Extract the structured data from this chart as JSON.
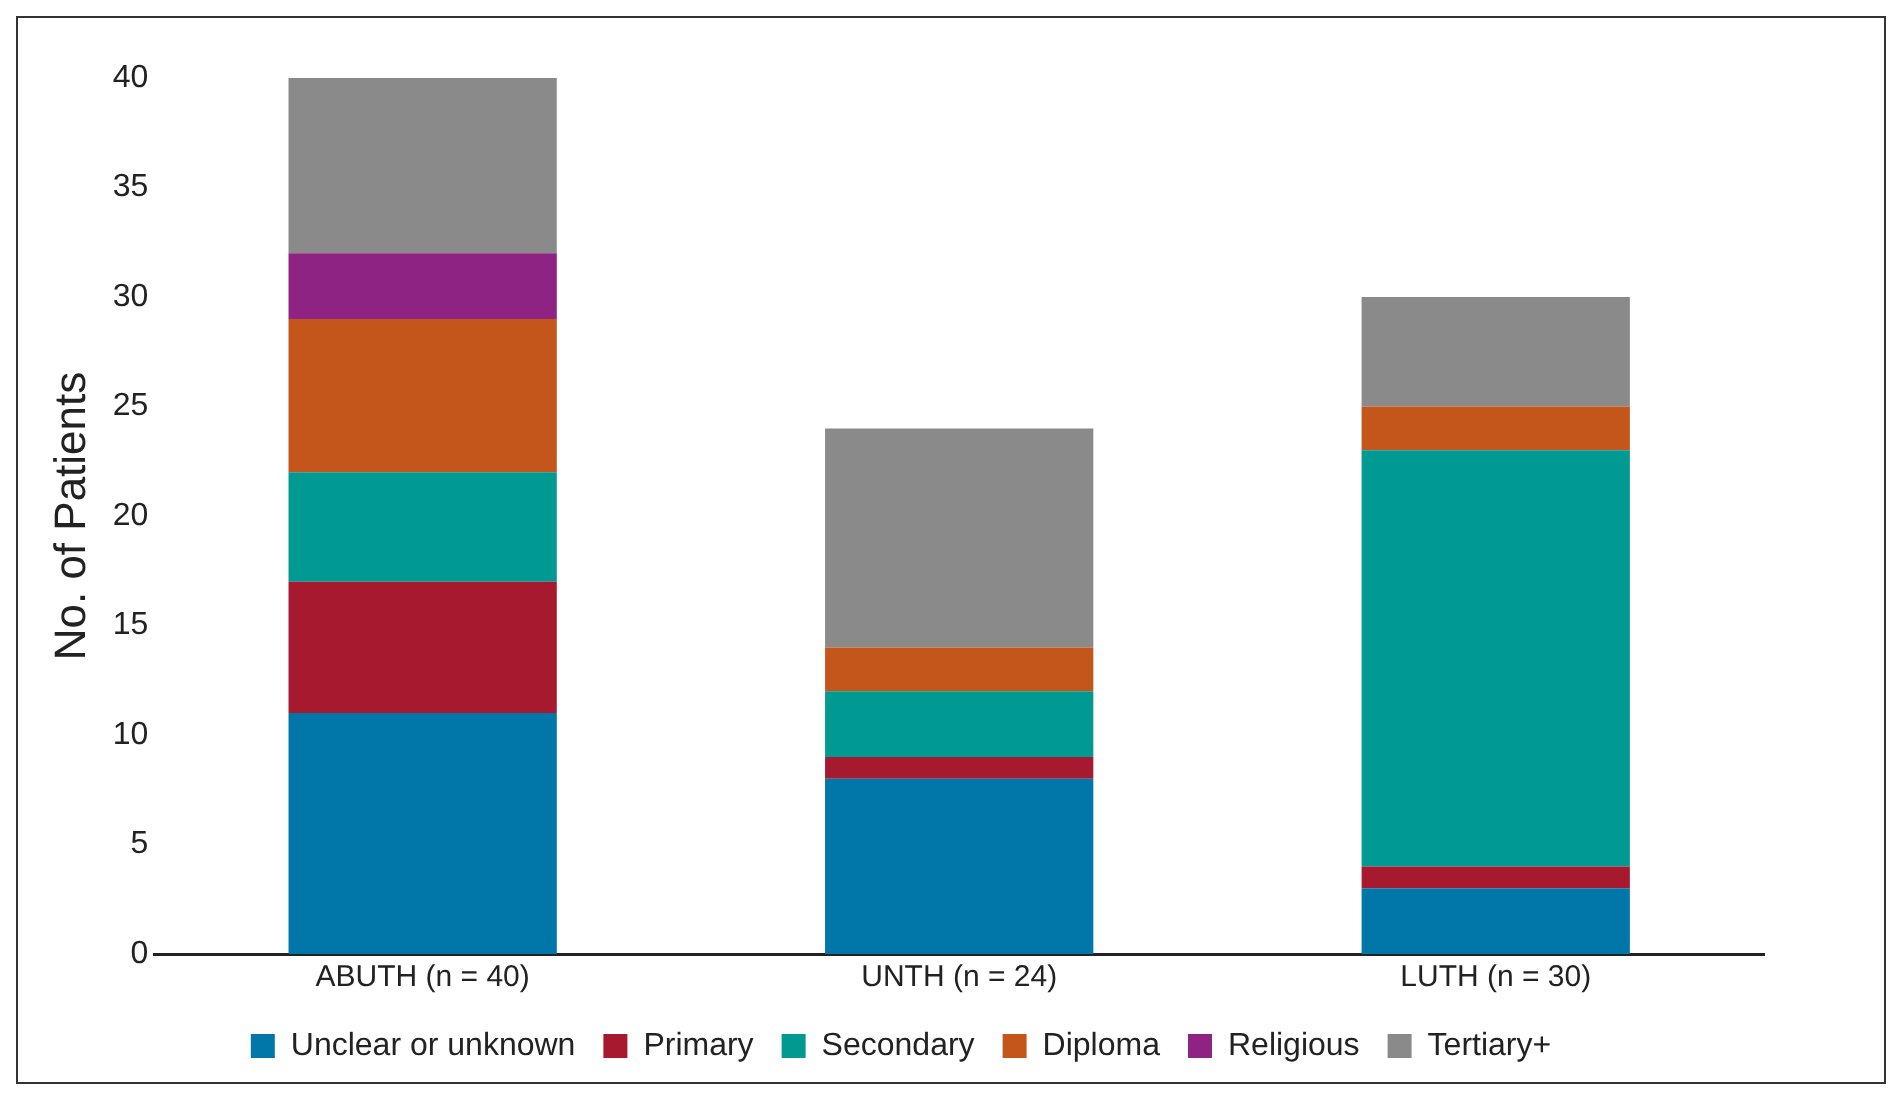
{
  "chart_data": {
    "type": "bar",
    "stacked": true,
    "ylabel": "No. of Patients",
    "categories": [
      "ABUTH (n = 40)",
      "UNTH (n = 24)",
      "LUTH (n = 30)"
    ],
    "series": [
      {
        "name": "Unclear or unknown",
        "color": "#0077a8",
        "values": [
          11,
          8,
          3
        ]
      },
      {
        "name": "Primary",
        "color": "#a6192e",
        "values": [
          6,
          1,
          1
        ]
      },
      {
        "name": "Secondary",
        "color": "#009a93",
        "values": [
          5,
          3,
          19
        ]
      },
      {
        "name": "Diploma",
        "color": "#c4561c",
        "values": [
          7,
          2,
          2
        ]
      },
      {
        "name": "Religious",
        "color": "#8e2383",
        "values": [
          3,
          0,
          0
        ]
      },
      {
        "name": "Tertiary+",
        "color": "#8a8a8a",
        "values": [
          8,
          10,
          5
        ]
      }
    ],
    "ylim": [
      0,
      40
    ],
    "yticks": [
      0,
      5,
      10,
      15,
      20,
      25,
      30,
      35,
      40
    ],
    "grid": false,
    "legend": "bottom"
  }
}
